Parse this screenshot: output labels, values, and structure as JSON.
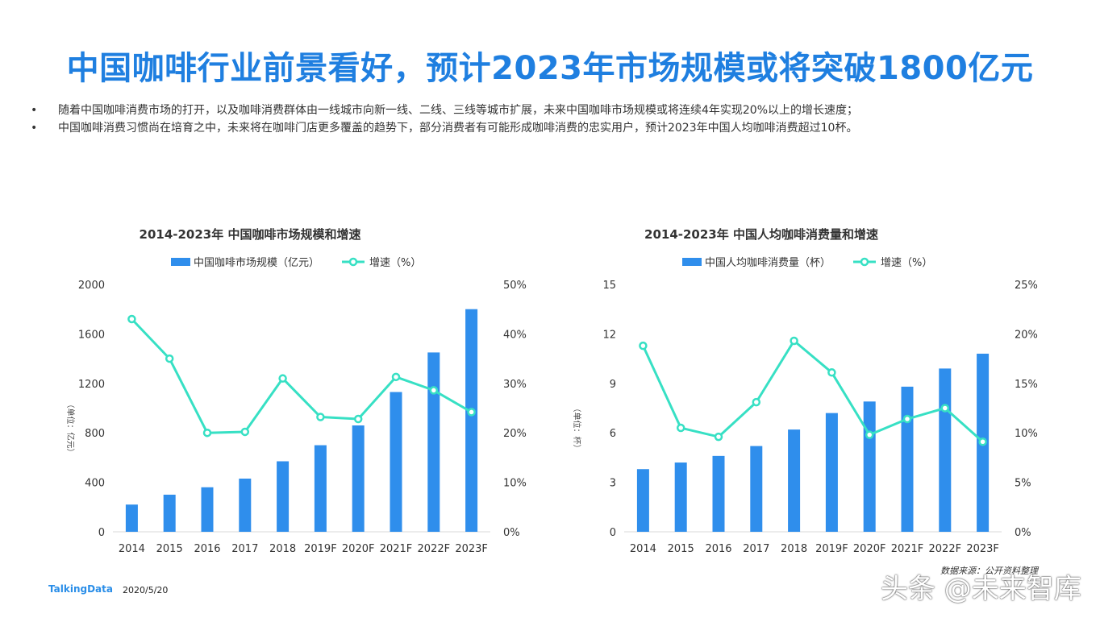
{
  "page": {
    "title": "中国咖啡行业前景看好，预计2023年市场规模或将突破1800亿元",
    "bullets": [
      "随着中国咖啡消费市场的打开，以及咖啡消费群体由一线城市向新一线、二线、三线等城市扩展，未来中国咖啡市场规模或将连续4年实现20%以上的增长速度；",
      "中国咖啡消费习惯尚在培育之中，未来将在咖啡门店更多覆盖的趋势下，部分消费者有可能形成咖啡消费的忠实用户，预计2023年中国人均咖啡消费超过10杯。"
    ],
    "bullet_symbol": "•",
    "footer": {
      "brand": "TalkingData",
      "date": "2020/5/20"
    },
    "source": "数据来源：公开资料整理",
    "watermark": "头条 @未来智库"
  },
  "colors": {
    "title": "#1f7fe0",
    "bar": "#2f8eec",
    "line": "#37e0c4"
  },
  "chart_data": [
    {
      "type": "bar",
      "title": "2014-2023年   中国咖啡市场规模和增速",
      "categories": [
        "2014",
        "2015",
        "2016",
        "2017",
        "2018",
        "2019F",
        "2020F",
        "2021F",
        "2022F",
        "2023F"
      ],
      "series": [
        {
          "name": "中国咖啡市场规模（亿元）",
          "type": "bar",
          "axis": "left",
          "values": [
            220,
            300,
            360,
            430,
            570,
            700,
            860,
            1130,
            1450,
            1800
          ]
        },
        {
          "name": "增速（%）",
          "type": "line",
          "axis": "right",
          "values": [
            43,
            35,
            20,
            20.2,
            31,
            23.2,
            22.8,
            31.3,
            28.6,
            24.2
          ]
        }
      ],
      "ylabel": "（单位：亿元）",
      "ylim": [
        0,
        2000
      ],
      "yticks": [
        0,
        400,
        800,
        1200,
        1600,
        2000
      ],
      "ylim_right": [
        0,
        50
      ],
      "yticks_right": [
        0,
        10,
        20,
        30,
        40,
        50
      ],
      "ytick_labels_right": [
        "0%",
        "10%",
        "20%",
        "30%",
        "40%",
        "50%"
      ]
    },
    {
      "type": "bar",
      "title": "2014-2023年   中国人均咖啡消费量和增速",
      "categories": [
        "2014",
        "2015",
        "2016",
        "2017",
        "2018",
        "2019F",
        "2020F",
        "2021F",
        "2022F",
        "2023F"
      ],
      "series": [
        {
          "name": "中国人均咖啡消费量（杯）",
          "type": "bar",
          "axis": "left",
          "values": [
            3.8,
            4.2,
            4.6,
            5.2,
            6.2,
            7.2,
            7.9,
            8.8,
            9.9,
            10.8
          ]
        },
        {
          "name": "增速（%）",
          "type": "line",
          "axis": "right",
          "values": [
            18.8,
            10.5,
            9.6,
            13.1,
            19.3,
            16.1,
            9.8,
            11.4,
            12.5,
            9.1
          ]
        }
      ],
      "ylabel": "（单位：杯）",
      "ylim": [
        0,
        15
      ],
      "yticks": [
        0,
        3,
        6,
        9,
        12,
        15
      ],
      "ylim_right": [
        0,
        25
      ],
      "yticks_right": [
        0,
        5,
        10,
        15,
        20,
        25
      ],
      "ytick_labels_right": [
        "0%",
        "5%",
        "10%",
        "15%",
        "20%",
        "25%"
      ]
    }
  ]
}
